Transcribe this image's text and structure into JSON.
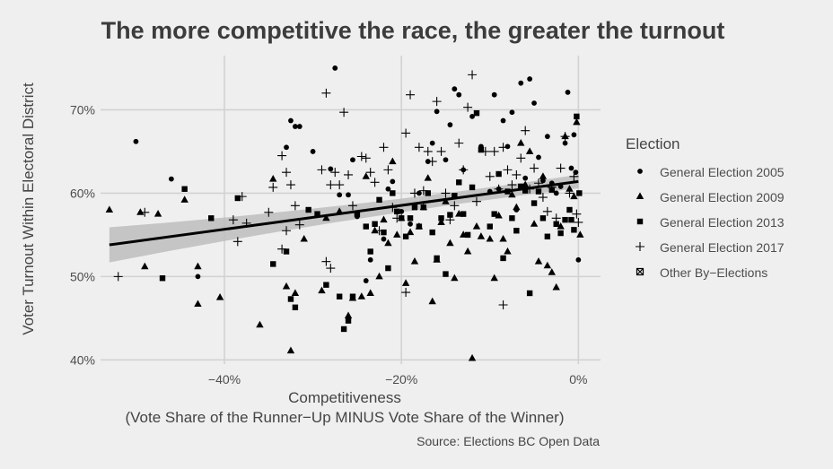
{
  "chart_data": {
    "type": "scatter",
    "title": "The more competitive the race, the greater the turnout",
    "xlabel": "Competitiveness",
    "xlabel_sub": "(Vote Share of the Runner−Up MINUS Vote Share of the Winner)",
    "ylabel": "Voter Turnout Within Electoral District",
    "caption": "Source: Elections BC Open Data",
    "xlim": [
      -0.54,
      0.025
    ],
    "ylim": [
      0.395,
      0.765
    ],
    "x_ticks": [
      -0.4,
      -0.2,
      0.0
    ],
    "x_tick_labels": [
      "−40%",
      "−20%",
      "0%"
    ],
    "y_ticks": [
      0.4,
      0.5,
      0.6,
      0.7
    ],
    "y_tick_labels": [
      "40%",
      "50%",
      "60%",
      "70%"
    ],
    "grid": true,
    "legend": {
      "title": "Election",
      "position": "right",
      "entries": [
        {
          "name": "General Election 2005",
          "shape": "circle"
        },
        {
          "name": "General Election 2009",
          "shape": "triangle"
        },
        {
          "name": "General Election 2013",
          "shape": "square"
        },
        {
          "name": "General Election 2017",
          "shape": "plus"
        },
        {
          "name": "Other By−Elections",
          "shape": "boxx"
        }
      ]
    },
    "trend": {
      "type": "linear",
      "x": [
        -0.53,
        0.0
      ],
      "y": [
        0.538,
        0.614
      ],
      "ci_half_width": [
        0.021,
        0.008
      ]
    },
    "series": [
      {
        "name": "General Election 2005",
        "shape": "circle",
        "points": [
          [
            -0.5,
            0.662
          ],
          [
            -0.46,
            0.617
          ],
          [
            -0.43,
            0.5
          ],
          [
            -0.33,
            0.655
          ],
          [
            -0.325,
            0.687
          ],
          [
            -0.32,
            0.68
          ],
          [
            -0.315,
            0.68
          ],
          [
            -0.3,
            0.65
          ],
          [
            -0.28,
            0.629
          ],
          [
            -0.275,
            0.75
          ],
          [
            -0.27,
            0.598
          ],
          [
            -0.26,
            0.598
          ],
          [
            -0.255,
            0.64
          ],
          [
            -0.25,
            0.572
          ],
          [
            -0.24,
            0.495
          ],
          [
            -0.235,
            0.52
          ],
          [
            -0.22,
            0.545
          ],
          [
            -0.215,
            0.605
          ],
          [
            -0.21,
            0.614
          ],
          [
            -0.2,
            0.578
          ],
          [
            -0.19,
            0.563
          ],
          [
            -0.18,
            0.6
          ],
          [
            -0.17,
            0.638
          ],
          [
            -0.165,
            0.66
          ],
          [
            -0.16,
            0.698
          ],
          [
            -0.15,
            0.64
          ],
          [
            -0.145,
            0.682
          ],
          [
            -0.14,
            0.725
          ],
          [
            -0.135,
            0.718
          ],
          [
            -0.13,
            0.628
          ],
          [
            -0.12,
            0.692
          ],
          [
            -0.11,
            0.656
          ],
          [
            -0.1,
            0.602
          ],
          [
            -0.095,
            0.718
          ],
          [
            -0.09,
            0.605
          ],
          [
            -0.085,
            0.687
          ],
          [
            -0.08,
            0.656
          ],
          [
            -0.075,
            0.697
          ],
          [
            -0.07,
            0.58
          ],
          [
            -0.065,
            0.732
          ],
          [
            -0.06,
            0.618
          ],
          [
            -0.055,
            0.737
          ],
          [
            -0.05,
            0.708
          ],
          [
            -0.045,
            0.643
          ],
          [
            -0.04,
            0.615
          ],
          [
            -0.035,
            0.668
          ],
          [
            -0.03,
            0.612
          ],
          [
            -0.025,
            0.6
          ],
          [
            -0.02,
            0.608
          ],
          [
            -0.015,
            0.66
          ],
          [
            -0.012,
            0.721
          ],
          [
            -0.008,
            0.63
          ],
          [
            -0.005,
            0.67
          ],
          [
            -0.003,
            0.625
          ],
          [
            0.0,
            0.52
          ]
        ]
      },
      {
        "name": "General Election 2009",
        "shape": "triangle",
        "points": [
          [
            -0.53,
            0.58
          ],
          [
            -0.495,
            0.577
          ],
          [
            -0.49,
            0.512
          ],
          [
            -0.475,
            0.575
          ],
          [
            -0.445,
            0.592
          ],
          [
            -0.43,
            0.512
          ],
          [
            -0.43,
            0.467
          ],
          [
            -0.405,
            0.475
          ],
          [
            -0.36,
            0.442
          ],
          [
            -0.345,
            0.617
          ],
          [
            -0.33,
            0.488
          ],
          [
            -0.325,
            0.411
          ],
          [
            -0.32,
            0.48
          ],
          [
            -0.31,
            0.545
          ],
          [
            -0.29,
            0.483
          ],
          [
            -0.285,
            0.57
          ],
          [
            -0.27,
            0.578
          ],
          [
            -0.26,
            0.453
          ],
          [
            -0.255,
            0.474
          ],
          [
            -0.245,
            0.476
          ],
          [
            -0.24,
            0.62
          ],
          [
            -0.235,
            0.48
          ],
          [
            -0.23,
            0.555
          ],
          [
            -0.225,
            0.5
          ],
          [
            -0.22,
            0.568
          ],
          [
            -0.215,
            0.54
          ],
          [
            -0.21,
            0.638
          ],
          [
            -0.205,
            0.55
          ],
          [
            -0.2,
            0.57
          ],
          [
            -0.195,
            0.492
          ],
          [
            -0.19,
            0.553
          ],
          [
            -0.185,
            0.518
          ],
          [
            -0.18,
            0.56
          ],
          [
            -0.175,
            0.583
          ],
          [
            -0.17,
            0.618
          ],
          [
            -0.165,
            0.47
          ],
          [
            -0.16,
            0.52
          ],
          [
            -0.155,
            0.565
          ],
          [
            -0.15,
            0.59
          ],
          [
            -0.145,
            0.54
          ],
          [
            -0.14,
            0.498
          ],
          [
            -0.135,
            0.575
          ],
          [
            -0.13,
            0.55
          ],
          [
            -0.125,
            0.53
          ],
          [
            -0.12,
            0.402
          ],
          [
            -0.115,
            0.56
          ],
          [
            -0.11,
            0.548
          ],
          [
            -0.1,
            0.545
          ],
          [
            -0.095,
            0.498
          ],
          [
            -0.09,
            0.573
          ],
          [
            -0.085,
            0.545
          ],
          [
            -0.08,
            0.53
          ],
          [
            -0.075,
            0.598
          ],
          [
            -0.07,
            0.583
          ],
          [
            -0.065,
            0.66
          ],
          [
            -0.06,
            0.61
          ],
          [
            -0.055,
            0.65
          ],
          [
            -0.05,
            0.563
          ],
          [
            -0.045,
            0.518
          ],
          [
            -0.04,
            0.62
          ],
          [
            -0.035,
            0.513
          ],
          [
            -0.03,
            0.505
          ],
          [
            -0.025,
            0.487
          ],
          [
            -0.02,
            0.56
          ],
          [
            -0.015,
            0.668
          ],
          [
            -0.01,
            0.605
          ],
          [
            -0.005,
            0.596
          ],
          [
            -0.002,
            0.685
          ],
          [
            0.002,
            0.55
          ]
        ]
      },
      {
        "name": "General Election 2013",
        "shape": "square",
        "points": [
          [
            -0.47,
            0.498
          ],
          [
            -0.445,
            0.605
          ],
          [
            -0.415,
            0.57
          ],
          [
            -0.385,
            0.594
          ],
          [
            -0.345,
            0.515
          ],
          [
            -0.33,
            0.53
          ],
          [
            -0.325,
            0.473
          ],
          [
            -0.32,
            0.463
          ],
          [
            -0.305,
            0.58
          ],
          [
            -0.295,
            0.575
          ],
          [
            -0.285,
            0.49
          ],
          [
            -0.27,
            0.476
          ],
          [
            -0.265,
            0.437
          ],
          [
            -0.26,
            0.447
          ],
          [
            -0.255,
            0.476
          ],
          [
            -0.25,
            0.575
          ],
          [
            -0.24,
            0.56
          ],
          [
            -0.235,
            0.53
          ],
          [
            -0.23,
            0.563
          ],
          [
            -0.225,
            0.592
          ],
          [
            -0.22,
            0.553
          ],
          [
            -0.215,
            0.51
          ],
          [
            -0.21,
            0.6
          ],
          [
            -0.205,
            0.578
          ],
          [
            -0.2,
            0.57
          ],
          [
            -0.195,
            0.548
          ],
          [
            -0.19,
            0.57
          ],
          [
            -0.185,
            0.583
          ],
          [
            -0.18,
            0.56
          ],
          [
            -0.175,
            0.583
          ],
          [
            -0.17,
            0.6
          ],
          [
            -0.165,
            0.553
          ],
          [
            -0.16,
            0.522
          ],
          [
            -0.155,
            0.57
          ],
          [
            -0.15,
            0.503
          ],
          [
            -0.145,
            0.574
          ],
          [
            -0.14,
            0.597
          ],
          [
            -0.135,
            0.613
          ],
          [
            -0.13,
            0.575
          ],
          [
            -0.125,
            0.55
          ],
          [
            -0.12,
            0.607
          ],
          [
            -0.115,
            0.696
          ],
          [
            -0.11,
            0.652
          ],
          [
            -0.1,
            0.56
          ],
          [
            -0.095,
            0.575
          ],
          [
            -0.09,
            0.623
          ],
          [
            -0.085,
            0.522
          ],
          [
            -0.08,
            0.602
          ],
          [
            -0.075,
            0.57
          ],
          [
            -0.07,
            0.555
          ],
          [
            -0.065,
            0.608
          ],
          [
            -0.06,
            0.603
          ],
          [
            -0.055,
            0.48
          ],
          [
            -0.05,
            0.588
          ],
          [
            -0.045,
            0.602
          ],
          [
            -0.04,
            0.57
          ],
          [
            -0.035,
            0.548
          ],
          [
            -0.03,
            0.604
          ],
          [
            -0.025,
            0.563
          ],
          [
            -0.02,
            0.552
          ],
          [
            -0.015,
            0.568
          ],
          [
            -0.01,
            0.58
          ],
          [
            -0.008,
            0.568
          ],
          [
            -0.005,
            0.556
          ],
          [
            -0.002,
            0.692
          ],
          [
            0.001,
            0.6
          ]
        ]
      },
      {
        "name": "General Election 2017",
        "shape": "plus",
        "points": [
          [
            -0.52,
            0.5
          ],
          [
            -0.49,
            0.577
          ],
          [
            -0.39,
            0.568
          ],
          [
            -0.385,
            0.542
          ],
          [
            -0.38,
            0.596
          ],
          [
            -0.375,
            0.564
          ],
          [
            -0.35,
            0.577
          ],
          [
            -0.345,
            0.607
          ],
          [
            -0.335,
            0.645
          ],
          [
            -0.33,
            0.625
          ],
          [
            -0.325,
            0.61
          ],
          [
            -0.32,
            0.585
          ],
          [
            -0.33,
            0.555
          ],
          [
            -0.335,
            0.533
          ],
          [
            -0.315,
            0.562
          ],
          [
            -0.29,
            0.628
          ],
          [
            -0.285,
            0.72
          ],
          [
            -0.28,
            0.61
          ],
          [
            -0.275,
            0.625
          ],
          [
            -0.27,
            0.61
          ],
          [
            -0.265,
            0.697
          ],
          [
            -0.26,
            0.622
          ],
          [
            -0.255,
            0.585
          ],
          [
            -0.285,
            0.518
          ],
          [
            -0.28,
            0.51
          ],
          [
            -0.245,
            0.644
          ],
          [
            -0.24,
            0.642
          ],
          [
            -0.235,
            0.625
          ],
          [
            -0.23,
            0.613
          ],
          [
            -0.225,
            0.555
          ],
          [
            -0.22,
            0.655
          ],
          [
            -0.215,
            0.628
          ],
          [
            -0.21,
            0.583
          ],
          [
            -0.205,
            0.57
          ],
          [
            -0.195,
            0.672
          ],
          [
            -0.19,
            0.718
          ],
          [
            -0.185,
            0.6
          ],
          [
            -0.18,
            0.655
          ],
          [
            -0.175,
            0.603
          ],
          [
            -0.17,
            0.65
          ],
          [
            -0.165,
            0.638
          ],
          [
            -0.16,
            0.71
          ],
          [
            -0.155,
            0.65
          ],
          [
            -0.15,
            0.6
          ],
          [
            -0.145,
            0.568
          ],
          [
            -0.14,
            0.585
          ],
          [
            -0.135,
            0.66
          ],
          [
            -0.13,
            0.628
          ],
          [
            -0.125,
            0.703
          ],
          [
            -0.12,
            0.742
          ],
          [
            -0.115,
            0.59
          ],
          [
            -0.105,
            0.65
          ],
          [
            -0.1,
            0.62
          ],
          [
            -0.095,
            0.65
          ],
          [
            -0.09,
            0.605
          ],
          [
            -0.085,
            0.655
          ],
          [
            -0.08,
            0.628
          ],
          [
            -0.075,
            0.61
          ],
          [
            -0.07,
            0.622
          ],
          [
            -0.065,
            0.642
          ],
          [
            -0.06,
            0.675
          ],
          [
            -0.055,
            0.605
          ],
          [
            -0.05,
            0.63
          ],
          [
            -0.045,
            0.612
          ],
          [
            -0.04,
            0.595
          ],
          [
            -0.035,
            0.578
          ],
          [
            -0.03,
            0.607
          ],
          [
            -0.025,
            0.57
          ],
          [
            -0.02,
            0.63
          ],
          [
            -0.015,
            0.668
          ],
          [
            -0.01,
            0.6
          ],
          [
            -0.005,
            0.62
          ],
          [
            -0.002,
            0.575
          ],
          [
            0.0,
            0.565
          ],
          [
            -0.195,
            0.481
          ],
          [
            -0.085,
            0.466
          ]
        ]
      }
    ]
  }
}
